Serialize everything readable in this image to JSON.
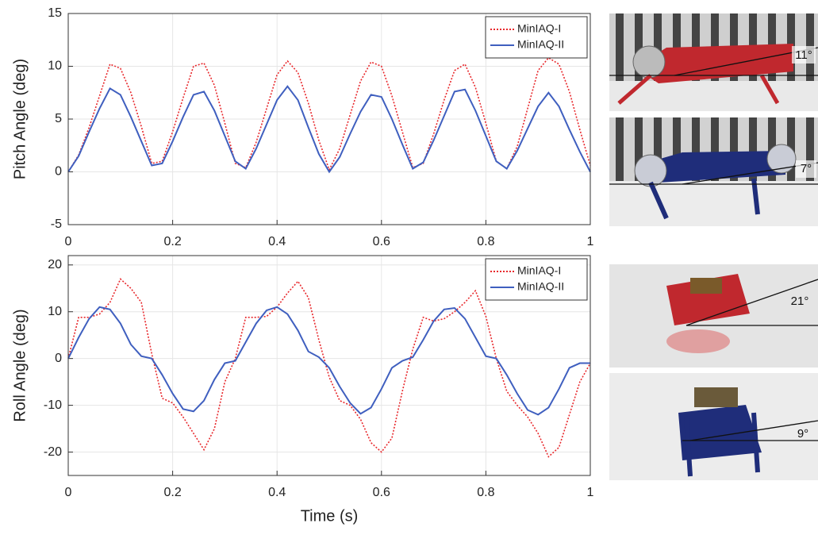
{
  "chart_data": [
    {
      "type": "line",
      "ylabel": "Pitch Angle (deg)",
      "x": [
        0,
        0.02,
        0.04,
        0.06,
        0.08,
        0.1,
        0.12,
        0.14,
        0.16,
        0.18,
        0.2,
        0.22,
        0.24,
        0.26,
        0.28,
        0.3,
        0.32,
        0.34,
        0.36,
        0.38,
        0.4,
        0.42,
        0.44,
        0.46,
        0.48,
        0.5,
        0.52,
        0.54,
        0.56,
        0.58,
        0.6,
        0.62,
        0.64,
        0.66,
        0.68,
        0.7,
        0.72,
        0.74,
        0.76,
        0.78,
        0.8,
        0.82,
        0.84,
        0.86,
        0.88,
        0.9,
        0.92,
        0.94,
        0.96,
        0.98,
        1
      ],
      "series": [
        {
          "name": "MinIAQ-I",
          "color": "#e8292d",
          "linestyle": "dotted",
          "values": [
            0,
            1.6,
            4.2,
            7.2,
            10.2,
            9.8,
            7.5,
            4.3,
            0.8,
            1.0,
            3.8,
            7.0,
            10.0,
            10.3,
            8.2,
            4.6,
            0.8,
            0.4,
            2.8,
            6.0,
            9.2,
            10.5,
            9.4,
            6.5,
            3.0,
            0.2,
            2.2,
            5.4,
            8.6,
            10.4,
            10.0,
            7.2,
            3.8,
            0.4,
            0.8,
            3.6,
            6.8,
            9.6,
            10.2,
            8.0,
            4.6,
            1.0,
            0.3,
            2.4,
            6.0,
            9.6,
            10.8,
            10.2,
            7.6,
            4.0,
            0.6
          ]
        },
        {
          "name": "MinIAQ-II",
          "color": "#3f5fbf",
          "linestyle": "solid",
          "values": [
            0,
            1.5,
            3.8,
            6.0,
            7.9,
            7.3,
            5.2,
            2.9,
            0.6,
            0.8,
            2.9,
            5.2,
            7.3,
            7.6,
            5.8,
            3.4,
            1.0,
            0.3,
            2.2,
            4.5,
            6.8,
            8.1,
            6.8,
            4.2,
            1.7,
            0,
            1.4,
            3.6,
            5.7,
            7.3,
            7.1,
            5.0,
            2.6,
            0.3,
            0.9,
            3.0,
            5.3,
            7.6,
            7.8,
            5.8,
            3.4,
            1.0,
            0.3,
            2.0,
            4.1,
            6.2,
            7.5,
            6.2,
            4.0,
            1.9,
            0
          ]
        }
      ],
      "xlim": [
        0,
        1
      ],
      "xticks": [
        0,
        0.2,
        0.4,
        0.6,
        0.8,
        1
      ],
      "ylim": [
        -5,
        15
      ],
      "yticks": [
        -5,
        0,
        5,
        10,
        15
      ],
      "grid": true,
      "legend": "upper right"
    },
    {
      "type": "line",
      "ylabel": "Roll Angle (deg)",
      "xlabel": "Time (s)",
      "x": [
        0,
        0.02,
        0.04,
        0.06,
        0.08,
        0.1,
        0.12,
        0.14,
        0.16,
        0.18,
        0.2,
        0.22,
        0.24,
        0.26,
        0.28,
        0.3,
        0.32,
        0.34,
        0.36,
        0.38,
        0.4,
        0.42,
        0.44,
        0.46,
        0.48,
        0.5,
        0.52,
        0.54,
        0.56,
        0.58,
        0.6,
        0.62,
        0.64,
        0.66,
        0.68,
        0.7,
        0.72,
        0.74,
        0.76,
        0.78,
        0.8,
        0.82,
        0.84,
        0.86,
        0.88,
        0.9,
        0.92,
        0.94,
        0.96,
        0.98,
        1
      ],
      "series": [
        {
          "name": "MinIAQ-I",
          "color": "#e8292d",
          "linestyle": "dotted",
          "values": [
            0,
            8.8,
            8.8,
            9.5,
            12,
            17,
            15,
            12,
            1,
            -8.5,
            -9.5,
            -12.5,
            -16,
            -19.5,
            -15,
            -5,
            0,
            8.8,
            8.8,
            9,
            11,
            14,
            16.5,
            13,
            4,
            -4,
            -9,
            -10,
            -13,
            -18,
            -20,
            -17,
            -7,
            2,
            8.8,
            8,
            8.5,
            10,
            12,
            14.5,
            9,
            0,
            -7,
            -10,
            -12.5,
            -16,
            -21,
            -19,
            -12,
            -5,
            -1
          ]
        },
        {
          "name": "MinIAQ-II",
          "color": "#3f5fbf",
          "linestyle": "solid",
          "values": [
            0,
            4.5,
            8.5,
            11,
            10.5,
            7.5,
            3,
            0.5,
            0,
            -3.5,
            -7.5,
            -10.8,
            -11.3,
            -9,
            -4.5,
            -1,
            -0.5,
            3.5,
            7.5,
            10.3,
            11,
            9.5,
            6,
            1.5,
            0.3,
            -2,
            -6,
            -9.5,
            -11.8,
            -10.5,
            -6.5,
            -2,
            -0.5,
            0.3,
            4,
            8,
            10.5,
            10.8,
            8.5,
            4.5,
            0.5,
            0,
            -3.5,
            -7.5,
            -11,
            -12,
            -10.5,
            -6.5,
            -2,
            -1,
            -1
          ]
        }
      ],
      "xlim": [
        0,
        1
      ],
      "xticks": [
        0,
        0.2,
        0.4,
        0.6,
        0.8,
        1
      ],
      "ylim": [
        -25,
        22
      ],
      "yticks": [
        -20,
        -10,
        0,
        10,
        20
      ],
      "grid": true,
      "legend": "upper right"
    }
  ],
  "images": [
    {
      "label": "11°"
    },
    {
      "label": "7°"
    },
    {
      "label": "21°"
    },
    {
      "label": "9°"
    }
  ]
}
